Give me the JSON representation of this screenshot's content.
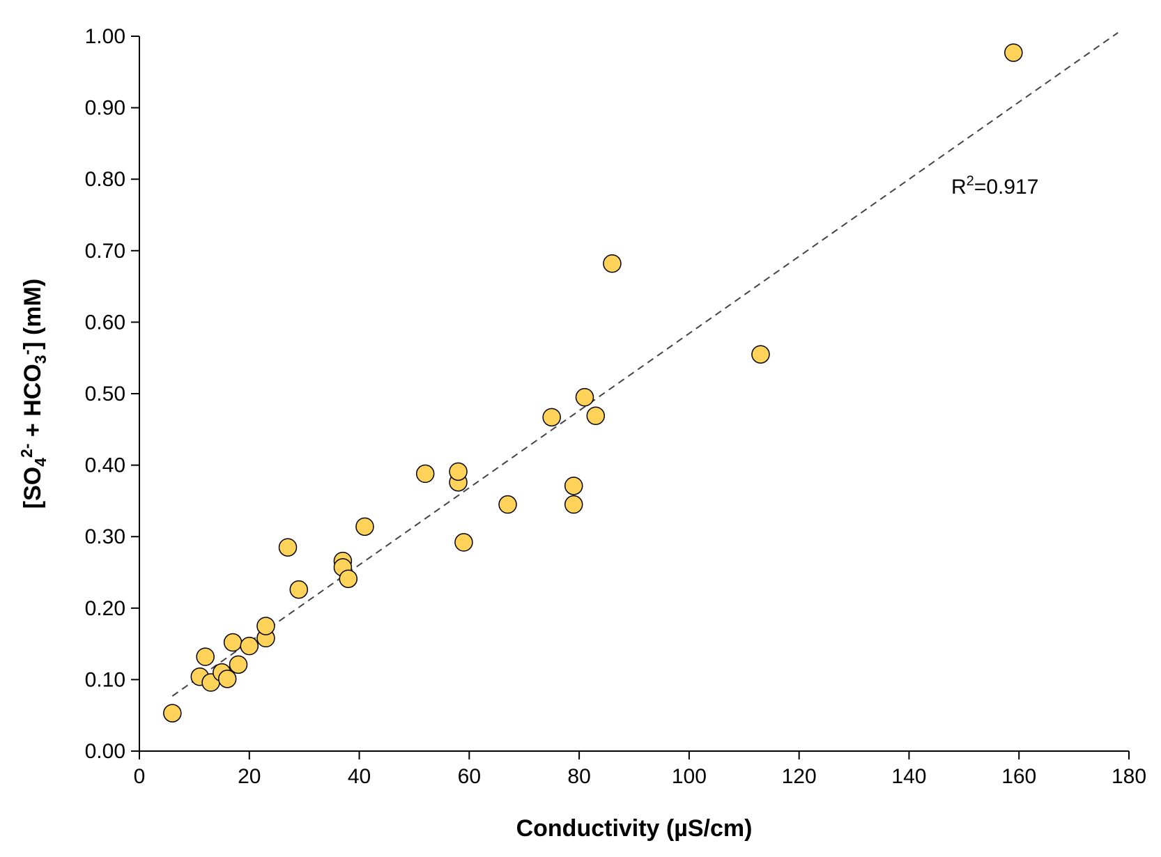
{
  "chart_data": {
    "type": "scatter",
    "xlabel": "Conductivity (µS/cm)",
    "ylabel": {
      "open": "[SO",
      "sub1": "4",
      "sup1": "2-",
      "mid": " + HCO",
      "sub2": "3",
      "sup2": "-",
      "close": "] (mM)"
    },
    "xlim": [
      0,
      180
    ],
    "ylim": [
      0.0,
      1.0
    ],
    "x_ticks": [
      "0",
      "20",
      "40",
      "60",
      "80",
      "100",
      "120",
      "140",
      "160",
      "180"
    ],
    "y_ticks": [
      "0.00",
      "0.10",
      "0.20",
      "0.30",
      "0.40",
      "0.50",
      "0.60",
      "0.70",
      "0.80",
      "0.90",
      "1.00"
    ],
    "grid": false,
    "legend": "none",
    "marker_color": "#ffd35a",
    "marker_edge_color": "#000000",
    "trendline": {
      "style": "dashed",
      "color": "#444444",
      "x": [
        6,
        178
      ],
      "y": [
        0.077,
        1.005
      ]
    },
    "annotation": {
      "base": "R",
      "sup": "2",
      "rest": "=0.917"
    },
    "points": [
      {
        "x": 6,
        "y": 0.053
      },
      {
        "x": 11,
        "y": 0.104
      },
      {
        "x": 12,
        "y": 0.132
      },
      {
        "x": 13,
        "y": 0.096
      },
      {
        "x": 15,
        "y": 0.11
      },
      {
        "x": 16,
        "y": 0.101
      },
      {
        "x": 17,
        "y": 0.152
      },
      {
        "x": 18,
        "y": 0.121
      },
      {
        "x": 20,
        "y": 0.147
      },
      {
        "x": 23,
        "y": 0.158
      },
      {
        "x": 23,
        "y": 0.175
      },
      {
        "x": 27,
        "y": 0.285
      },
      {
        "x": 29,
        "y": 0.226
      },
      {
        "x": 37,
        "y": 0.266
      },
      {
        "x": 37,
        "y": 0.257
      },
      {
        "x": 38,
        "y": 0.241
      },
      {
        "x": 41,
        "y": 0.314
      },
      {
        "x": 52,
        "y": 0.388
      },
      {
        "x": 58,
        "y": 0.376
      },
      {
        "x": 58,
        "y": 0.391
      },
      {
        "x": 59,
        "y": 0.292
      },
      {
        "x": 67,
        "y": 0.345
      },
      {
        "x": 75,
        "y": 0.467
      },
      {
        "x": 79,
        "y": 0.371
      },
      {
        "x": 79,
        "y": 0.345
      },
      {
        "x": 81,
        "y": 0.495
      },
      {
        "x": 83,
        "y": 0.469
      },
      {
        "x": 86,
        "y": 0.682
      },
      {
        "x": 113,
        "y": 0.555
      },
      {
        "x": 159,
        "y": 0.977
      }
    ]
  }
}
